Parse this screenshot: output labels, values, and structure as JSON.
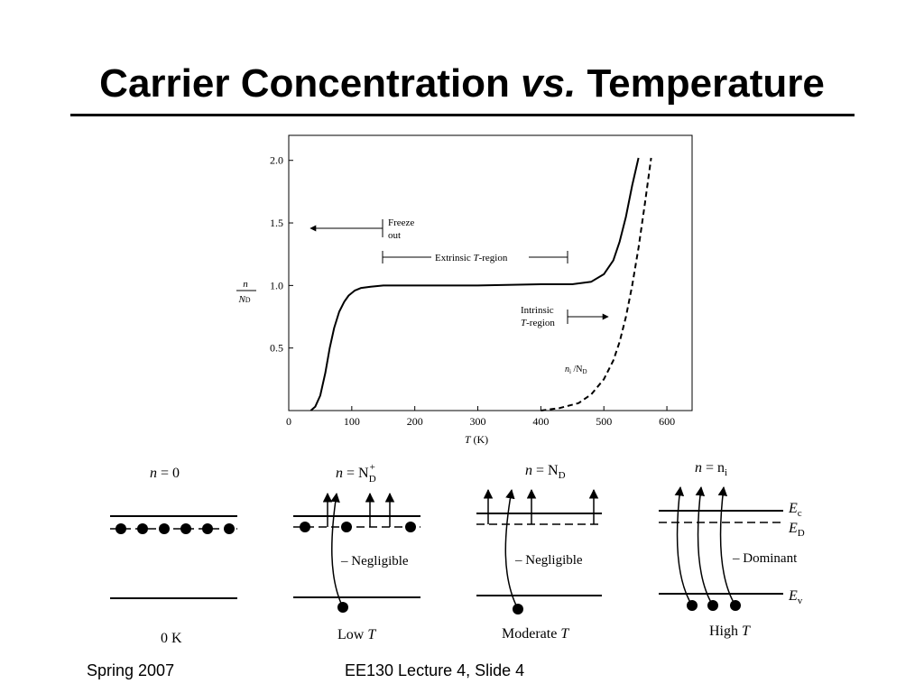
{
  "slide": {
    "title_part1": "Carrier Concentration ",
    "title_part2": "vs.",
    "title_part3": " Temperature",
    "footer_left": "Spring 2007",
    "footer_center": "EE130 Lecture 4, Slide 4"
  },
  "chart_data": {
    "type": "line",
    "xlabel": "T (K)",
    "ylabel": "n / N_D",
    "ylabel_num": "n",
    "ylabel_den": "N",
    "ylabel_den_sub": "D",
    "xlim": [
      0,
      640
    ],
    "ylim": [
      0,
      2.2
    ],
    "x_ticks": [
      0,
      100,
      200,
      300,
      400,
      500,
      600
    ],
    "x_tick_labels": [
      "0",
      "100",
      "200",
      "300",
      "400",
      "500",
      "600"
    ],
    "y_ticks": [
      0.5,
      1.0,
      1.5,
      2.0
    ],
    "y_tick_labels": [
      "0.5",
      "1.0",
      "1.5",
      "2.0"
    ],
    "series": [
      {
        "style": "solid",
        "x": [
          35,
          42,
          50,
          58,
          65,
          72,
          80,
          88,
          95,
          105,
          115,
          130,
          150,
          200,
          300,
          400,
          450,
          480,
          500,
          515,
          525,
          535,
          545,
          555
        ],
        "y": [
          0.0,
          0.03,
          0.12,
          0.3,
          0.5,
          0.66,
          0.79,
          0.87,
          0.92,
          0.96,
          0.98,
          0.99,
          1.0,
          1.0,
          1.0,
          1.01,
          1.01,
          1.03,
          1.09,
          1.2,
          1.35,
          1.55,
          1.8,
          2.02
        ]
      },
      {
        "style": "dashed",
        "name_base": "n",
        "name_sub1": "i",
        "name_mid": " /N",
        "name_sub2": "D",
        "x": [
          400,
          430,
          460,
          480,
          500,
          515,
          525,
          535,
          545,
          555,
          565,
          575
        ],
        "y": [
          0.0,
          0.02,
          0.06,
          0.13,
          0.25,
          0.4,
          0.55,
          0.75,
          1.0,
          1.3,
          1.65,
          2.02
        ]
      }
    ],
    "annotations": {
      "freeze": [
        "Freeze",
        "out"
      ],
      "extrinsic_a": "Extrinsic ",
      "extrinsic_t": "T",
      "extrinsic_b": "-region",
      "intrinsic_1": "Intrinsic",
      "intrinsic_2_t": "T",
      "intrinsic_2_b": "-region"
    }
  },
  "band_diagrams": [
    {
      "label_a": "n",
      "label_b": " = 0",
      "label_sup": "",
      "label_sub": "",
      "caption_a": "0 K",
      "caption_t": "",
      "side_text": ""
    },
    {
      "label_a": "n",
      "label_b": " = N",
      "label_sup": "+",
      "label_sub": "D",
      "caption_a": "Low ",
      "caption_t": "T",
      "side_text": "– Negligible"
    },
    {
      "label_a": "n",
      "label_b": " = N",
      "label_sup": "",
      "label_sub": "D",
      "caption_a": "Moderate ",
      "caption_t": "T",
      "side_text": "– Negligible"
    },
    {
      "label_a": "n",
      "label_b": " = n",
      "label_sup": "",
      "label_sub": "i",
      "caption_a": "High ",
      "caption_t": "T",
      "side_text": "– Dominant"
    }
  ],
  "band_labels": {
    "ec": "E",
    "ec_sub": "c",
    "ed": "E",
    "ed_sub": "D",
    "ev": "E",
    "ev_sub": "v"
  }
}
